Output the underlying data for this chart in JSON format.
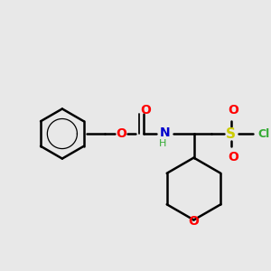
{
  "background_color": "#e8e8e8",
  "fig_size": [
    3.0,
    3.0
  ],
  "dpi": 100,
  "colors": {
    "bond": "#000000",
    "O": "#ff0000",
    "N": "#0000cc",
    "S": "#cccc00",
    "Cl": "#33aa33",
    "H_color": "#33aa33",
    "bg": "#e8e8e8"
  }
}
